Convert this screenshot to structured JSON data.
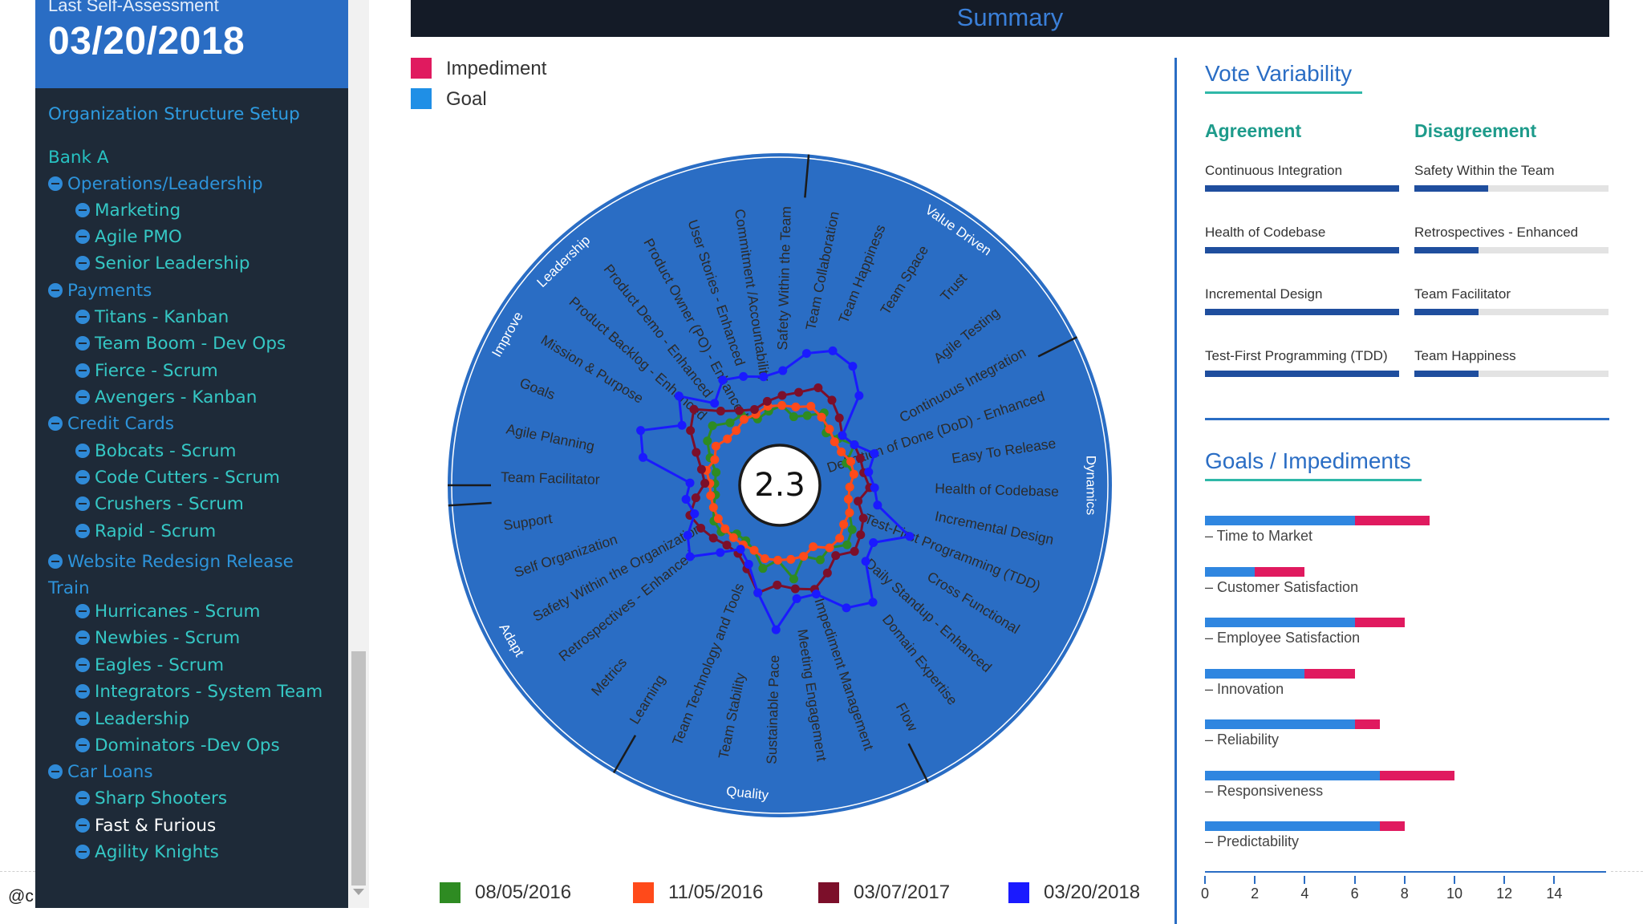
{
  "sidebar": {
    "last_assessment_label": "Last Self-Assessment",
    "last_assessment_date": "03/20/2018",
    "org_setup_link": "Organization Structure Setup",
    "bank": "Bank A",
    "groups": [
      {
        "name": "Operations/Leadership",
        "teams": [
          "Marketing",
          "Agile PMO",
          "Senior Leadership"
        ]
      },
      {
        "name": "Payments",
        "teams": [
          "Titans - Kanban",
          "Team Boom - Dev Ops",
          "Fierce - Scrum",
          "Avengers - Kanban"
        ]
      },
      {
        "name": "Credit Cards",
        "teams": [
          "Bobcats - Scrum",
          "Code Cutters - Scrum",
          "Crushers - Scrum",
          "Rapid - Scrum"
        ]
      },
      {
        "name": "Website Redesign Release Train",
        "teams": [
          "Hurricanes - Scrum",
          "Newbies - Scrum",
          "Eagles - Scrum",
          "Integrators - System Team",
          "Leadership",
          "Dominators -Dev Ops"
        ]
      },
      {
        "name": "Car Loans",
        "teams": [
          "Sharp Shooters",
          "Fast & Furious",
          "Agility Knights"
        ]
      }
    ],
    "selected_team": "Fast & Furious",
    "user_handle": "@c"
  },
  "summary": {
    "title": "Summary",
    "score": "2.3",
    "legend": [
      {
        "label": "Impediment",
        "color": "#e01a5f"
      },
      {
        "label": "Goal",
        "color": "#1f8fe6"
      }
    ],
    "date_legend": [
      {
        "label": "08/05/2016",
        "color": "#2e8b22"
      },
      {
        "label": "11/05/2016",
        "color": "#ff4a1a"
      },
      {
        "label": "03/07/2017",
        "color": "#7c0f2a"
      },
      {
        "label": "03/20/2018",
        "color": "#1a1aff"
      }
    ]
  },
  "chart_data": {
    "type": "radar",
    "score": 2.3,
    "rings": [
      "Leadership",
      "Value Driven",
      "Dynamics",
      "Quality",
      "Adapt",
      "Improve"
    ],
    "categories": [
      "Team Facilitator",
      "Agile Planning",
      "Goals",
      "Mission & Purpose",
      "Product Backlog - Enhanced",
      "Product Demo - Enhanced",
      "Product Owner (PO) - Enhanced",
      "User Stories - Enhanced",
      "Commitment /Accountability",
      "Safety Within the Team",
      "Team Collaboration",
      "Team Happiness",
      "Team Space",
      "Trust",
      "Agile Testing",
      "Continuous Integration",
      "Definition of Done (DoD) - Enhanced",
      "Easy To Release",
      "Health of Codebase",
      "Incremental Design",
      "Test-First Programming (TDD)",
      "Cross Functional",
      "Daily Standup - Enhanced",
      "Domain Expertise",
      "Flow",
      "Impediment Management",
      "Meeting Engagement",
      "Sustainable Pace",
      "Team Stability",
      "Team Technology and Tools",
      "Learning",
      "Metrics",
      "Retrospectives - Enhanced",
      "Safety Within the Organization",
      "Self Organization",
      "Support"
    ],
    "segment_status": [
      "none",
      "none",
      "none",
      "none",
      "none",
      "none",
      "none",
      "none",
      "none",
      "none",
      "none",
      "none",
      "none",
      "none",
      "impediment",
      "impediment",
      "impediment",
      "impediment",
      "none",
      "none",
      "impediment",
      "none",
      "none",
      "none",
      "none",
      "none",
      "none",
      "none",
      "none",
      "impediment",
      "goal",
      "goal",
      "goal",
      "impediment",
      "impediment",
      "impediment"
    ],
    "series": [
      {
        "name": "08/05/2016",
        "color": "#2e8b22",
        "values": [
          0.1,
          0.1,
          0.14,
          0.18,
          0.2,
          0.16,
          0.16,
          0.12,
          0.14,
          0.16,
          0.12,
          0.14,
          0.18,
          0.12,
          0.14,
          0.18,
          0.12,
          0.14,
          0.12,
          0.12,
          0.14,
          0.18,
          0.2,
          0.16,
          0.18,
          0.14,
          0.22,
          0.14,
          0.18,
          0.12,
          0.1,
          0.1,
          0.14,
          0.14,
          0.12,
          0.1
        ]
      },
      {
        "name": "11/05/2016",
        "color": "#ff4a1a",
        "values": [
          0.12,
          0.14,
          0.12,
          0.14,
          0.12,
          0.12,
          0.14,
          0.14,
          0.16,
          0.16,
          0.16,
          0.18,
          0.16,
          0.14,
          0.12,
          0.12,
          0.14,
          0.14,
          0.12,
          0.12,
          0.14,
          0.14,
          0.16,
          0.16,
          0.12,
          0.14,
          0.14,
          0.14,
          0.14,
          0.12,
          0.12,
          0.12,
          0.12,
          0.12,
          0.12,
          0.12
        ]
      },
      {
        "name": "03/07/2017",
        "color": "#7c0f2a",
        "values": [
          0.14,
          0.16,
          0.2,
          0.26,
          0.3,
          0.22,
          0.18,
          0.16,
          0.18,
          0.2,
          0.22,
          0.26,
          0.24,
          0.2,
          0.16,
          0.18,
          0.18,
          0.18,
          0.2,
          0.16,
          0.2,
          0.22,
          0.24,
          0.2,
          0.24,
          0.28,
          0.26,
          0.24,
          0.28,
          0.2,
          0.16,
          0.16,
          0.18,
          0.2,
          0.22,
          0.18
        ]
      },
      {
        "name": "03/20/2018",
        "color": "#1a1aff",
        "values": [
          0.2,
          0.4,
          0.44,
          0.3,
          0.38,
          0.26,
          0.32,
          0.3,
          0.28,
          0.3,
          0.38,
          0.42,
          0.4,
          0.32,
          0.16,
          0.18,
          0.24,
          0.2,
          0.22,
          0.24,
          0.4,
          0.28,
          0.3,
          0.44,
          0.4,
          0.3,
          0.3,
          0.42,
          0.28,
          0.18,
          0.14,
          0.2,
          0.3,
          0.26,
          0.2,
          0.22
        ]
      }
    ]
  },
  "vote_variability": {
    "title": "Vote Variability",
    "agreement_header": "Agreement",
    "disagreement_header": "Disagreement",
    "rows": [
      {
        "agree": "Continuous Integration",
        "agree_value": 1.0,
        "disagree": "Safety Within the Team",
        "disagree_value": 0.38
      },
      {
        "agree": "Health of Codebase",
        "agree_value": 1.0,
        "disagree": "Retrospectives - Enhanced",
        "disagree_value": 0.33
      },
      {
        "agree": "Incremental Design",
        "agree_value": 1.0,
        "disagree": "Team Facilitator",
        "disagree_value": 0.33
      },
      {
        "agree": "Test-First Programming (TDD)",
        "agree_value": 1.0,
        "disagree": "Team Happiness",
        "disagree_value": 0.33
      }
    ]
  },
  "goals_impediments": {
    "title": "Goals / Impediments",
    "axis_ticks": [
      0,
      2,
      4,
      6,
      8,
      10,
      12,
      14
    ],
    "x_max": 15,
    "items": [
      {
        "label": "Time to Market",
        "goal": 6,
        "impediment": 3
      },
      {
        "label": "Customer Satisfaction",
        "goal": 2,
        "impediment": 2
      },
      {
        "label": "Employee Satisfaction",
        "goal": 6,
        "impediment": 2
      },
      {
        "label": "Innovation",
        "goal": 4,
        "impediment": 2
      },
      {
        "label": "Reliability",
        "goal": 6,
        "impediment": 1
      },
      {
        "label": "Responsiveness",
        "goal": 7,
        "impediment": 3
      },
      {
        "label": "Predictability",
        "goal": 7,
        "impediment": 1
      }
    ]
  }
}
